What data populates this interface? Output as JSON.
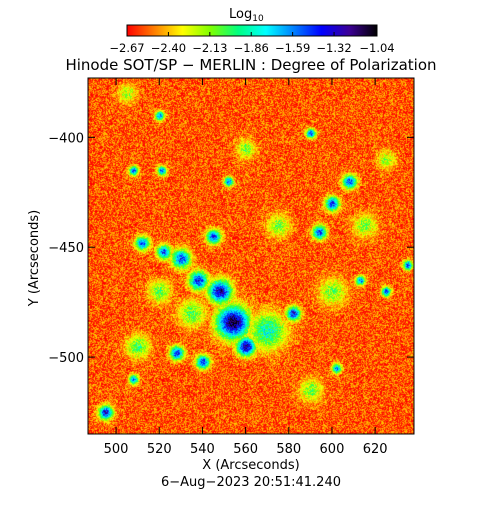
{
  "chart_data": {
    "type": "heatmap",
    "title": "Hinode SOT/SP − MERLIN : Degree of Polarization",
    "colorbar": {
      "label_main": "Log",
      "label_sub": "10",
      "ticks": [
        -2.67,
        -2.4,
        -2.13,
        -1.86,
        -1.59,
        -1.32,
        -1.04
      ],
      "tick_labels": [
        "−2.67",
        "−2.40",
        "−2.13",
        "−1.86",
        "−1.59",
        "−1.32",
        "−1.04"
      ],
      "range": [
        -2.67,
        -1.04
      ],
      "colormap": [
        "#ff0000",
        "#ff8000",
        "#ffff00",
        "#7fff00",
        "#00ff80",
        "#00ffff",
        "#0080ff",
        "#0000ff",
        "#3c0096",
        "#000000"
      ]
    },
    "xlabel": "X (Arcseconds)",
    "ylabel": "Y (Arcseconds)",
    "xlim": [
      487,
      638
    ],
    "ylim": [
      -535,
      -373
    ],
    "xticks": [
      500,
      520,
      540,
      560,
      580,
      600,
      620
    ],
    "yticks": [
      -400,
      -450,
      -500
    ],
    "xtick_labels": [
      "500",
      "520",
      "540",
      "560",
      "580",
      "600",
      "620"
    ],
    "ytick_labels": [
      "−400",
      "−450",
      "−500"
    ],
    "date_label": "6−Aug−2023 20:51:41.240",
    "background_level": -2.55,
    "features": [
      {
        "kind": "strong",
        "x": 554,
        "y": -484,
        "r": 7,
        "level": -1.1
      },
      {
        "kind": "strong",
        "x": 548,
        "y": -470,
        "r": 5,
        "level": -1.25
      },
      {
        "kind": "strong",
        "x": 560,
        "y": -495,
        "r": 4,
        "level": -1.2
      },
      {
        "kind": "medium",
        "x": 570,
        "y": -488,
        "r": 8,
        "level": -1.85
      },
      {
        "kind": "strong",
        "x": 538,
        "y": -465,
        "r": 4,
        "level": -1.4
      },
      {
        "kind": "strong",
        "x": 530,
        "y": -455,
        "r": 4,
        "level": -1.45
      },
      {
        "kind": "strong",
        "x": 522,
        "y": -452,
        "r": 3,
        "level": -1.45
      },
      {
        "kind": "strong",
        "x": 512,
        "y": -448,
        "r": 3,
        "level": -1.5
      },
      {
        "kind": "strong",
        "x": 545,
        "y": -445,
        "r": 3,
        "level": -1.4
      },
      {
        "kind": "strong",
        "x": 582,
        "y": -480,
        "r": 3,
        "level": -1.35
      },
      {
        "kind": "strong",
        "x": 552,
        "y": -420,
        "r": 2,
        "level": -1.5
      },
      {
        "kind": "strong",
        "x": 600,
        "y": -430,
        "r": 3,
        "level": -1.4
      },
      {
        "kind": "strong",
        "x": 608,
        "y": -420,
        "r": 3,
        "level": -1.45
      },
      {
        "kind": "strong",
        "x": 594,
        "y": -443,
        "r": 3,
        "level": -1.45
      },
      {
        "kind": "strong",
        "x": 590,
        "y": -398,
        "r": 2,
        "level": -1.4
      },
      {
        "kind": "strong",
        "x": 613,
        "y": -465,
        "r": 2,
        "level": -1.5
      },
      {
        "kind": "strong",
        "x": 625,
        "y": -470,
        "r": 2,
        "level": -1.45
      },
      {
        "kind": "strong",
        "x": 508,
        "y": -415,
        "r": 2,
        "level": -1.5
      },
      {
        "kind": "strong",
        "x": 521,
        "y": -415,
        "r": 2,
        "level": -1.5
      },
      {
        "kind": "strong",
        "x": 528,
        "y": -498,
        "r": 3,
        "level": -1.4
      },
      {
        "kind": "strong",
        "x": 540,
        "y": -502,
        "r": 3,
        "level": -1.45
      },
      {
        "kind": "strong",
        "x": 495,
        "y": -525,
        "r": 3,
        "level": -1.35
      },
      {
        "kind": "strong",
        "x": 508,
        "y": -510,
        "r": 2,
        "level": -1.5
      },
      {
        "kind": "strong",
        "x": 635,
        "y": -458,
        "r": 2,
        "level": -1.45
      },
      {
        "kind": "strong",
        "x": 602,
        "y": -505,
        "r": 2,
        "level": -1.5
      },
      {
        "kind": "strong",
        "x": 520,
        "y": -390,
        "r": 2,
        "level": -1.55
      },
      {
        "kind": "medium",
        "x": 510,
        "y": -495,
        "r": 5,
        "level": -2.0
      },
      {
        "kind": "medium",
        "x": 535,
        "y": -480,
        "r": 6,
        "level": -2.05
      },
      {
        "kind": "medium",
        "x": 520,
        "y": -470,
        "r": 5,
        "level": -2.05
      },
      {
        "kind": "medium",
        "x": 600,
        "y": -470,
        "r": 6,
        "level": -2.1
      },
      {
        "kind": "medium",
        "x": 615,
        "y": -440,
        "r": 5,
        "level": -2.1
      },
      {
        "kind": "medium",
        "x": 575,
        "y": -440,
        "r": 5,
        "level": -2.1
      },
      {
        "kind": "medium",
        "x": 560,
        "y": -405,
        "r": 4,
        "level": -2.1
      },
      {
        "kind": "medium",
        "x": 505,
        "y": -380,
        "r": 4,
        "level": -2.15
      },
      {
        "kind": "medium",
        "x": 590,
        "y": -515,
        "r": 5,
        "level": -2.1
      },
      {
        "kind": "medium",
        "x": 625,
        "y": -410,
        "r": 4,
        "level": -2.15
      }
    ]
  }
}
